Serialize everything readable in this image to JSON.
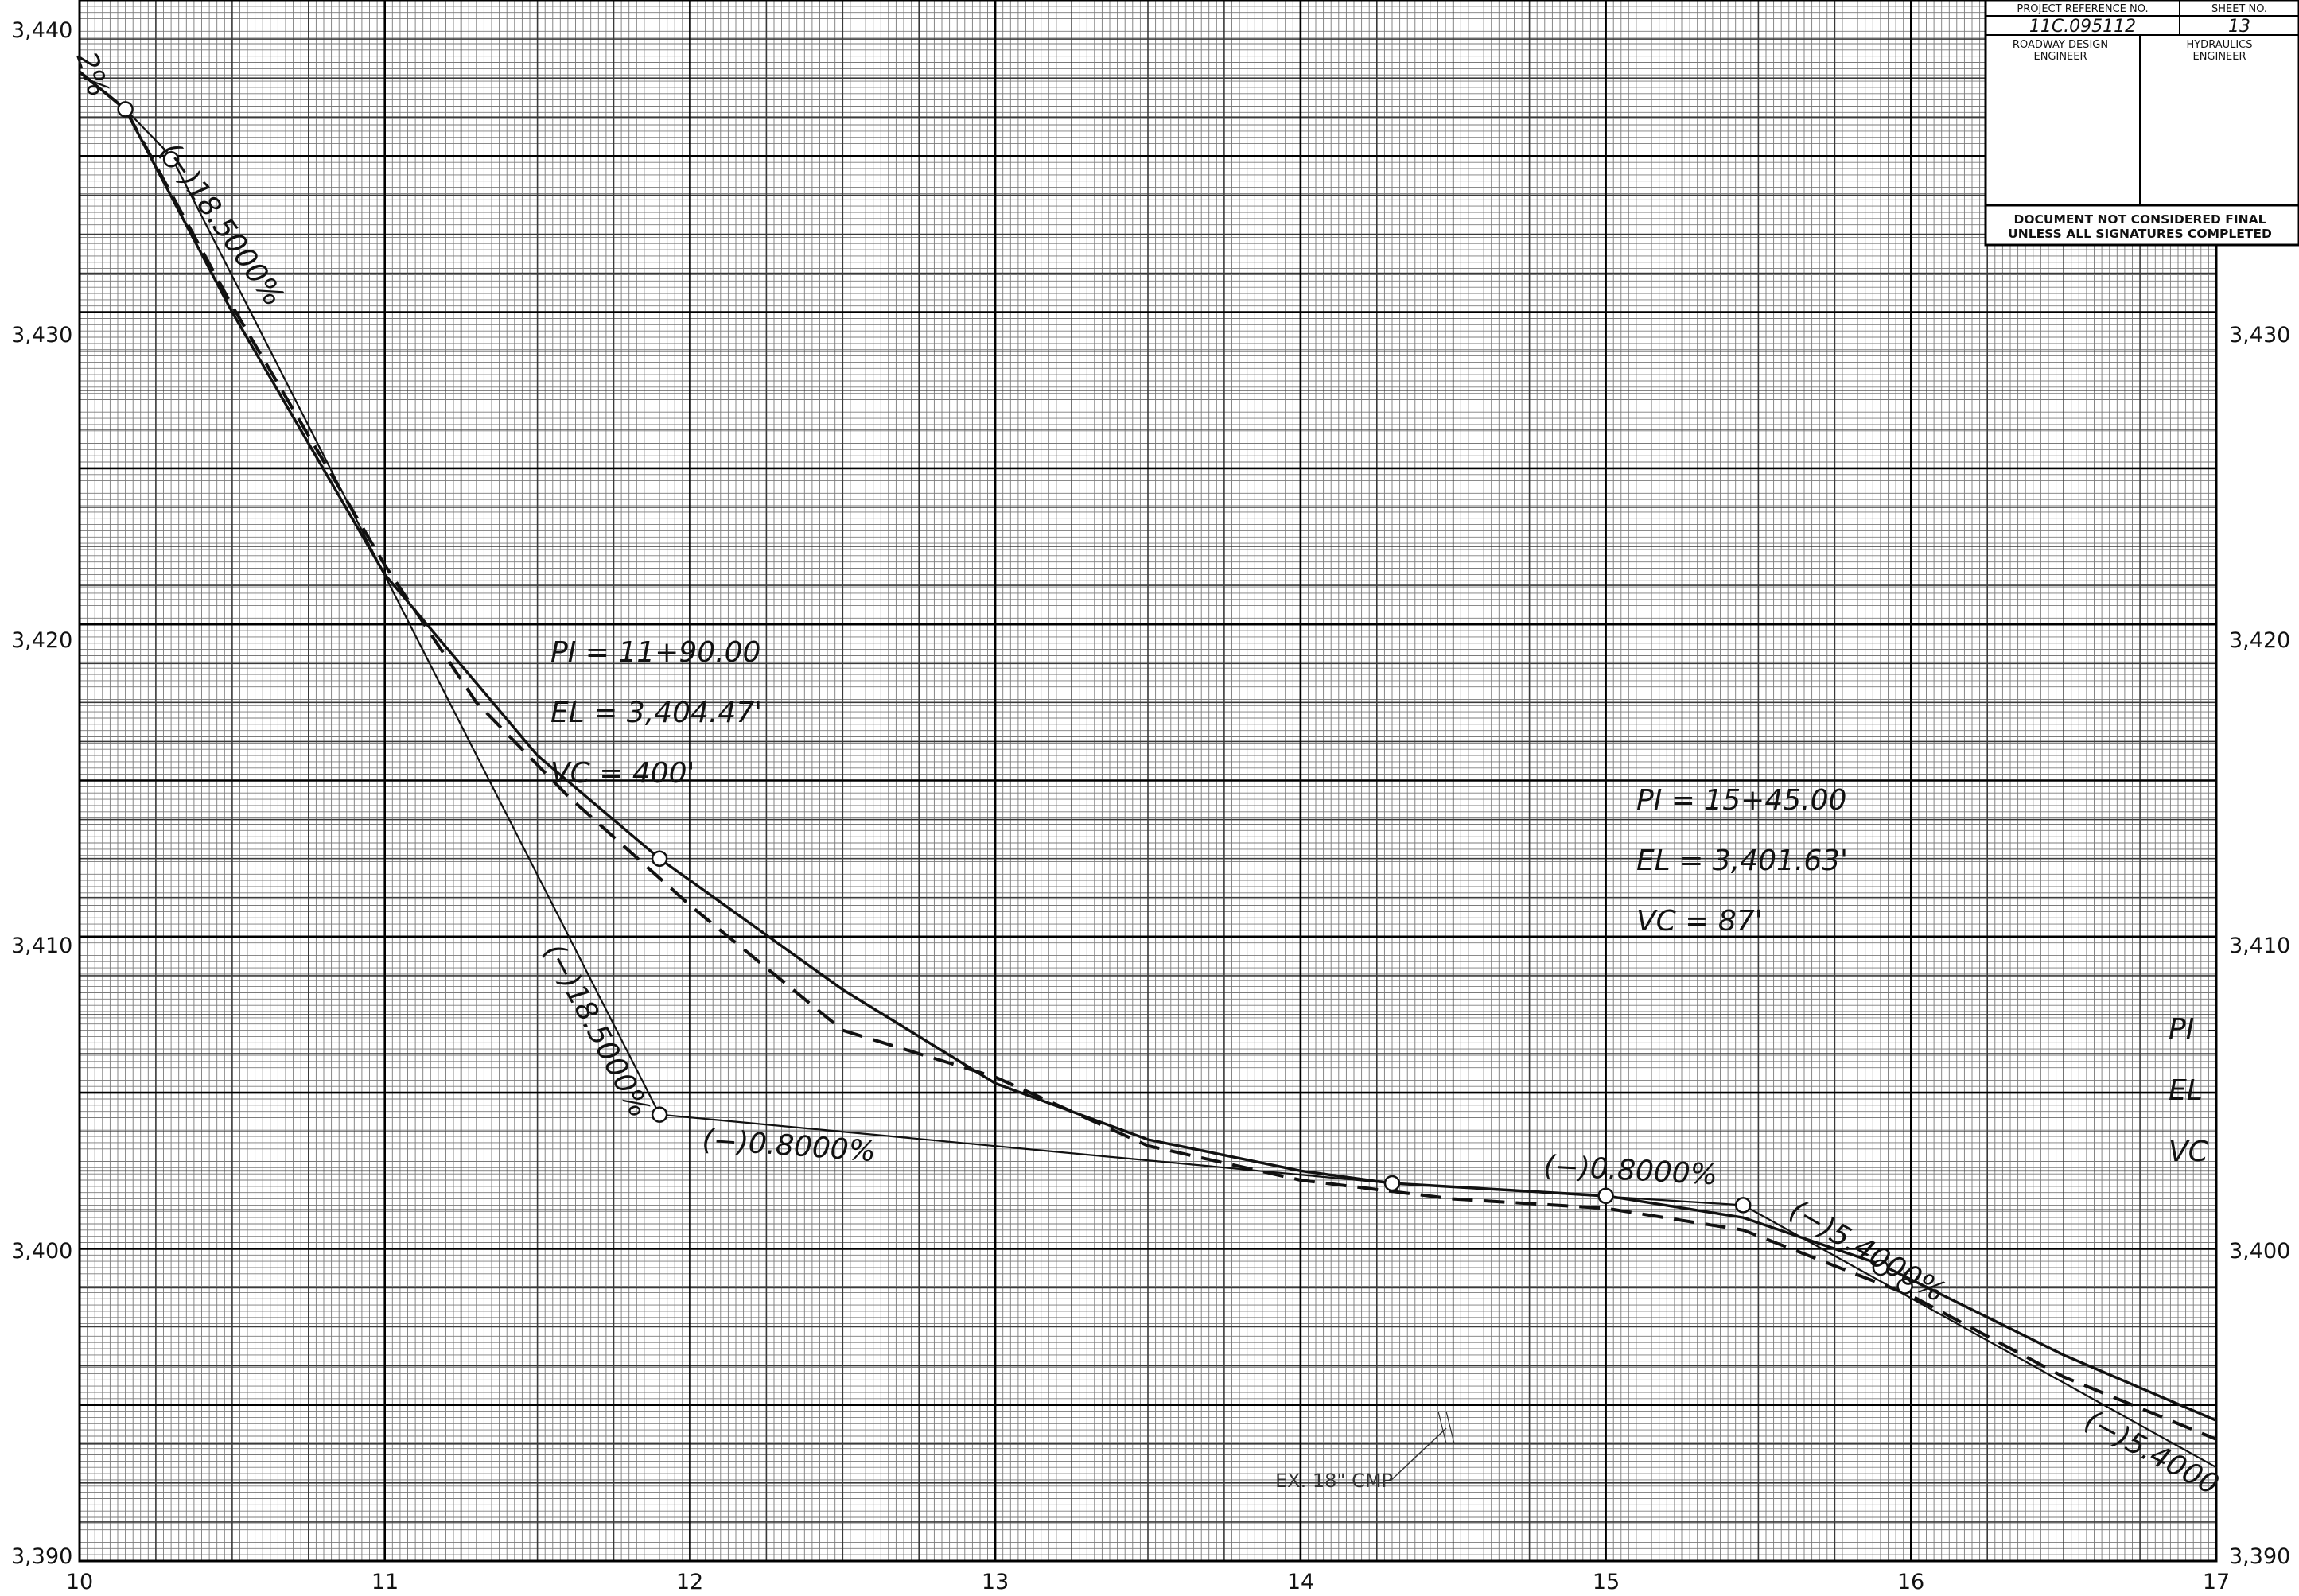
{
  "title_block": {
    "project_reference_label": "PROJECT REFERENCE NO.",
    "sheet_no_label": "SHEET NO.",
    "project_reference_value": "11C.095112",
    "sheet_no_value": "13",
    "roadway_design_engineer_label_1": "ROADWAY DESIGN",
    "roadway_design_engineer_label_2": "ENGINEER",
    "hydraulics_engineer_label_1": "HYDRAULICS",
    "hydraulics_engineer_label_2": "ENGINEER",
    "disclaimer_line_1": "DOCUMENT NOT CONSIDERED FINAL",
    "disclaimer_line_2": "UNLESS ALL SIGNATURES COMPLETED"
  },
  "axes": {
    "x_ticks": [
      "10",
      "11",
      "12",
      "13",
      "14",
      "15",
      "16",
      "17"
    ],
    "y_ticks": [
      "3,440",
      "3,430",
      "3,420",
      "3,410",
      "3,400",
      "3,390"
    ],
    "x_range": [
      10,
      17
    ],
    "y_range": [
      3390,
      3440
    ]
  },
  "curve_data": {
    "proposed_grade_line": [
      [
        10.0,
        3437.7
      ],
      [
        10.15,
        3436.5
      ],
      [
        10.5,
        3430.0
      ],
      [
        11.0,
        3421.6
      ],
      [
        11.5,
        3415.8
      ],
      [
        11.9,
        3412.5
      ],
      [
        12.5,
        3408.3
      ],
      [
        13.0,
        3405.3
      ],
      [
        13.5,
        3403.5
      ],
      [
        14.0,
        3402.5
      ],
      [
        14.3,
        3402.1
      ],
      [
        15.0,
        3401.7
      ],
      [
        15.45,
        3401.0
      ],
      [
        15.9,
        3399.5
      ],
      [
        16.5,
        3396.6
      ],
      [
        17.0,
        3394.5
      ]
    ],
    "existing_ground_dashed": [
      [
        10.0,
        3437.7
      ],
      [
        10.15,
        3436.5
      ],
      [
        10.5,
        3430.2
      ],
      [
        11.0,
        3421.9
      ],
      [
        11.3,
        3417.5
      ],
      [
        11.6,
        3414.5
      ],
      [
        12.0,
        3411.0
      ],
      [
        12.5,
        3407.0
      ],
      [
        13.0,
        3405.5
      ],
      [
        13.5,
        3403.3
      ],
      [
        14.0,
        3402.2
      ],
      [
        14.5,
        3401.6
      ],
      [
        15.0,
        3401.3
      ],
      [
        15.45,
        3400.6
      ],
      [
        16.0,
        3398.5
      ],
      [
        16.5,
        3395.9
      ],
      [
        17.0,
        3393.9
      ]
    ],
    "tangent_line": [
      [
        10.0,
        3437.7
      ],
      [
        10.15,
        3436.5
      ],
      [
        10.3,
        3435.0
      ],
      [
        11.9,
        3404.3
      ],
      [
        14.3,
        3402.1
      ],
      [
        15.45,
        3401.4
      ],
      [
        17.0,
        3393.0
      ]
    ],
    "vertical_points": [
      [
        10.15,
        3436.5
      ],
      [
        10.3,
        3434.9
      ],
      [
        11.9,
        3412.5
      ],
      [
        11.9,
        3404.3
      ],
      [
        14.3,
        3402.1
      ],
      [
        15.0,
        3401.7
      ],
      [
        15.45,
        3401.4
      ],
      [
        15.9,
        3399.4
      ],
      [
        15.98,
        3398.8
      ]
    ]
  },
  "annotations": {
    "grade_1a": "(−)18.5000%",
    "grade_1b": "(−)18.5000%",
    "grade_2a": "(−)0.8000%",
    "grade_2b": "(−)0.8000%",
    "grade_3a": "(−)5.4000%",
    "grade_3b": "(−)5.4000",
    "grade_top_left": "2%",
    "pi_1": {
      "pi": "PI  =   11+90.00",
      "el": "EL   =   3,404.47'",
      "vc": "VC   =   400'"
    },
    "pi_2": {
      "pi": "PI  =   15+45.00",
      "el": "EL   =   3,401.63'",
      "vc": "VC   =   87'"
    },
    "pi_3": {
      "pi": "PI",
      "el": "EL",
      "vc": "VC"
    },
    "culvert_note": "EX. 18\" CMP"
  }
}
